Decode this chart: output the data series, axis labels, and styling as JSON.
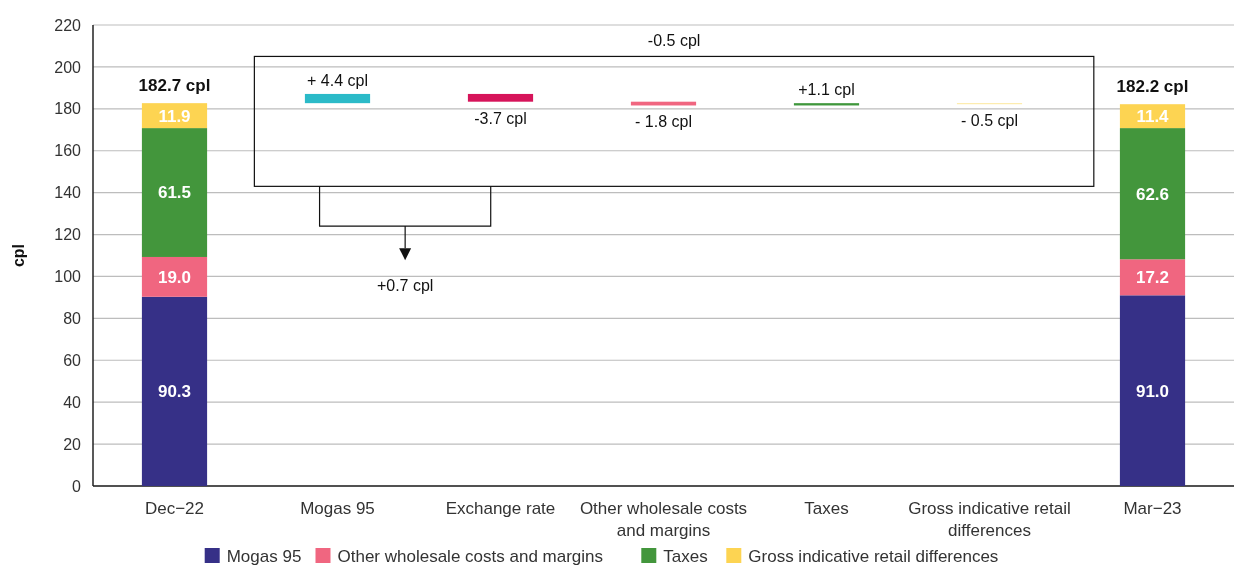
{
  "chart_data": {
    "type": "bar",
    "ylabel": "cpl",
    "categories": [
      "Dec−22",
      "Mogas 95",
      "Exchange rate",
      "Other wholesale costs and margins",
      "Taxes",
      "Gross indicative retail differences",
      "Mar−23"
    ],
    "stacked": true,
    "ylim": [
      0,
      220
    ],
    "yticks": [
      0,
      20,
      40,
      60,
      80,
      100,
      120,
      140,
      160,
      180,
      200,
      220
    ],
    "grid": "y",
    "legend": "bottom",
    "series": [
      {
        "name": "Mogas 95",
        "color": "#363087",
        "values": [
          90.3,
          null,
          null,
          null,
          null,
          null,
          91.0
        ],
        "value_labels": [
          "90.3",
          null,
          null,
          null,
          null,
          null,
          "91.0"
        ]
      },
      {
        "name": "Other wholesale costs and margins",
        "color": "#f06680",
        "values": [
          19.0,
          null,
          null,
          null,
          null,
          null,
          17.2
        ],
        "value_labels": [
          "19.0",
          null,
          null,
          null,
          null,
          null,
          "17.2"
        ]
      },
      {
        "name": "Taxes",
        "color": "#43963c",
        "values": [
          61.5,
          null,
          null,
          null,
          null,
          null,
          62.6
        ],
        "value_labels": [
          "61.5",
          null,
          null,
          null,
          null,
          null,
          "62.6"
        ]
      },
      {
        "name": "Gross indicative retail differences",
        "color": "#fdd452",
        "values": [
          11.9,
          null,
          null,
          null,
          null,
          null,
          11.4
        ],
        "value_labels": [
          "11.9",
          null,
          null,
          null,
          null,
          null,
          "11.4"
        ]
      },
      {
        "values": [
          null,
          4.4,
          -3.7,
          -1.8,
          1.1,
          -0.5,
          null
        ],
        "base": [
          null,
          182.7,
          187.1,
          183.4,
          181.6,
          182.7,
          null
        ],
        "colors": [
          null,
          "#2bbac8",
          "#d6145a",
          "#f06680",
          "#3f973c",
          "#fde9a0",
          null
        ],
        "value_labels": [
          null,
          "+ 4.4 cpl",
          "-3.7 cpl",
          "- 1.8 cpl",
          "+1.1 cpl",
          "- 0.5 cpl",
          null
        ]
      }
    ],
    "totals": [
      "182.7 cpl",
      null,
      null,
      null,
      null,
      null,
      "182.2 cpl"
    ],
    "annotations": [
      "-0.5 cpl",
      "+0.7 cpl"
    ]
  }
}
